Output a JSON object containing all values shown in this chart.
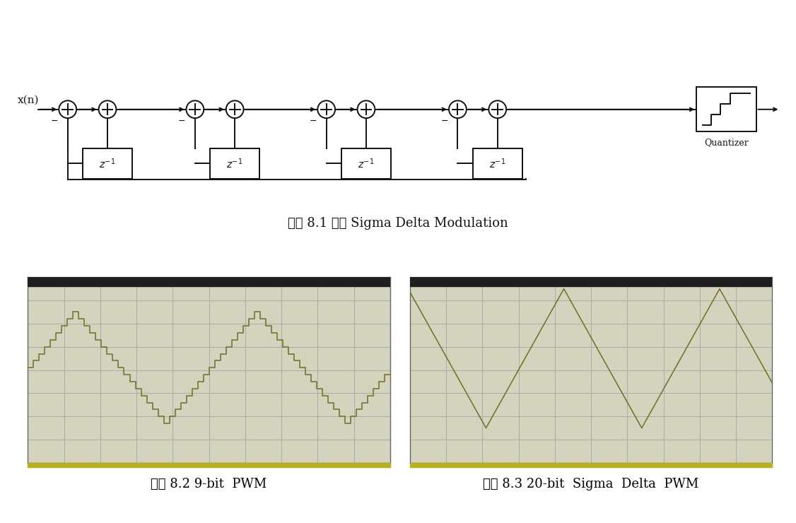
{
  "title_block": "그림 8.1 단계 Sigma Delta Modulation",
  "caption_left": "그림 8.2 9-bit  PWM",
  "caption_right": "그림 8.3 20-bit  Sigma  Delta  PWM",
  "bg_color": "#ffffff",
  "osc_bg": "#d4d4be",
  "osc_grid_color": "#aaaaaa",
  "osc_line_color": "#6e6e28",
  "osc_header_color": "#1e1e1e",
  "block_line_color": "#111111",
  "status_bar_color": "#b8b020",
  "status_bar2_left": "#c8b030",
  "status_bar2_right": "#908020"
}
